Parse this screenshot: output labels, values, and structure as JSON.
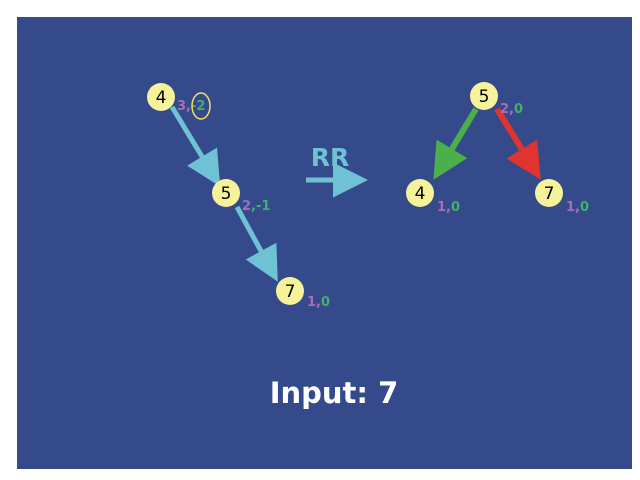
{
  "colors": {
    "background": "#354a8b",
    "node_fill": "#f6f29a",
    "height": "#a86fb3",
    "balance": "#3fb36a",
    "edge_original": "#6fc1d4",
    "edge_left": "#4cb04a",
    "edge_right": "#e1332f",
    "rotation_arrow": "#6fc1d4",
    "highlight_ring": "#f0e060"
  },
  "left_tree": {
    "nodes": [
      {
        "key": "4",
        "height": "3",
        "balance": "-2"
      },
      {
        "key": "5",
        "height": "2",
        "balance": "-1"
      },
      {
        "key": "7",
        "height": "1",
        "balance": "0"
      }
    ]
  },
  "rotation": {
    "label": "RR"
  },
  "right_tree": {
    "nodes": [
      {
        "key": "5",
        "height": "2",
        "balance": "0"
      },
      {
        "key": "4",
        "height": "1",
        "balance": "0"
      },
      {
        "key": "7",
        "height": "1",
        "balance": "0"
      }
    ]
  },
  "input": {
    "text": "Input: 7"
  }
}
